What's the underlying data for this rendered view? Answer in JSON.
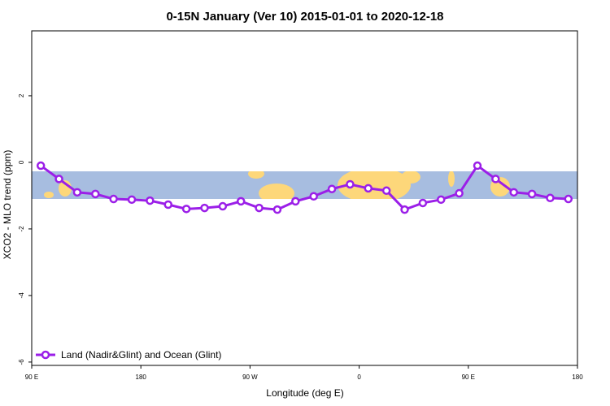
{
  "chart_data": {
    "type": "line",
    "title": "0-15N January (Ver 10)   2015-01-01 to 2020-12-18",
    "x_label": "Longitude (deg E)",
    "y_label": "XCO2 - MLO trend (ppm)",
    "x": [
      97.5,
      112.5,
      127.5,
      142.5,
      157.5,
      172.5,
      187.5,
      202.5,
      217.5,
      232.5,
      247.5,
      262.5,
      277.5,
      292.5,
      307.5,
      322.5,
      337.5,
      352.5,
      367.5,
      382.5,
      397.5,
      412.5,
      427.5,
      442.5,
      457.5,
      472.5,
      487.5,
      502.5,
      517.5,
      532.5
    ],
    "series": [
      {
        "name": "Land (Nadir&Glint) and Ocean (Glint)",
        "color": "#9b1fe8",
        "values": [
          -0.1,
          -0.5,
          -0.9,
          -0.95,
          -1.1,
          -1.12,
          -1.15,
          -1.27,
          -1.4,
          -1.37,
          -1.32,
          -1.17,
          -1.37,
          -1.42,
          -1.17,
          -1.02,
          -0.8,
          -0.66,
          -0.78,
          -0.85,
          -1.42,
          -1.22,
          -1.12,
          -0.93,
          -0.1,
          -0.5,
          -0.9,
          -0.95,
          -1.07,
          -1.1
        ]
      }
    ],
    "xlim": [
      90,
      540
    ],
    "xticks": [
      {
        "value": 90,
        "label": "90 E"
      },
      180,
      {
        "value": 270,
        "label": "90 W"
      },
      {
        "value": 360,
        "label": "0"
      },
      {
        "value": 450,
        "label": "90 E"
      },
      {
        "value": 540,
        "label": "180"
      }
    ],
    "ylim": [
      -6.1,
      3.95
    ],
    "yticks": [
      -6,
      -4,
      -2,
      0,
      2
    ],
    "legend": "bottom-left"
  }
}
